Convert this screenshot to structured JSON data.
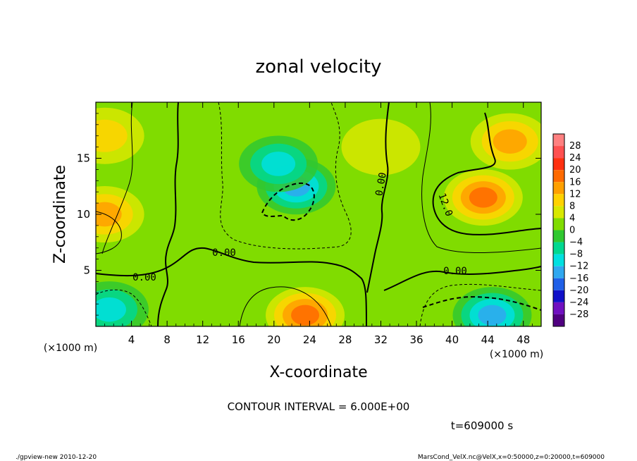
{
  "chart_data": {
    "type": "heatmap",
    "title": "zonal velocity",
    "xlabel": "X-coordinate",
    "ylabel": "Z-coordinate",
    "x_unit_label": "(×1000 m)",
    "y_unit_label": "(×1000 m)",
    "xlim": [
      0,
      50
    ],
    "ylim": [
      0,
      20
    ],
    "x_ticks": [
      4,
      8,
      12,
      16,
      20,
      24,
      28,
      32,
      36,
      40,
      44,
      48
    ],
    "y_ticks": [
      5,
      10,
      15
    ],
    "colorbar": {
      "levels": [
        28,
        24,
        20,
        16,
        12,
        8,
        4,
        0,
        -4,
        -8,
        -12,
        -16,
        -20,
        -24,
        -28
      ],
      "colors": [
        "#ff8080",
        "#ff5050",
        "#ff3010",
        "#ff6a00",
        "#ffa000",
        "#ffd200",
        "#d8e800",
        "#80dc00",
        "#30c830",
        "#00d890",
        "#00e0e0",
        "#30a8f0",
        "#2060e8",
        "#1010c8",
        "#7010c0",
        "#500080"
      ]
    },
    "contour_interval_label": "CONTOUR INTERVAL = 6.000E+00",
    "contour_labels": [
      "0.00",
      "0.00",
      "0.00",
      "0.00",
      "12.0"
    ],
    "time_label": "t=609000 s",
    "features": [
      {
        "x": 22.5,
        "z": 12.5,
        "value": -14
      },
      {
        "x": 20.5,
        "z": 14.5,
        "value": -12
      },
      {
        "x": 43.5,
        "z": 11.5,
        "value": 14
      },
      {
        "x": 46.5,
        "z": 16.5,
        "value": 10
      },
      {
        "x": 23.5,
        "z": 1.0,
        "value": 14
      },
      {
        "x": 44.5,
        "z": 1.0,
        "value": -17
      },
      {
        "x": 1.5,
        "z": 1.5,
        "value": -10
      },
      {
        "x": 1.0,
        "z": 17.0,
        "value": 8
      },
      {
        "x": 1.0,
        "z": 10.0,
        "value": 10
      },
      {
        "x": 32.0,
        "z": 16.0,
        "value": 2
      }
    ]
  },
  "footer": {
    "left": "./gpview-new  2010-12-20",
    "right": "MarsCond_VelX.nc@VelX,x=0:50000,z=0:20000,t=609000"
  }
}
